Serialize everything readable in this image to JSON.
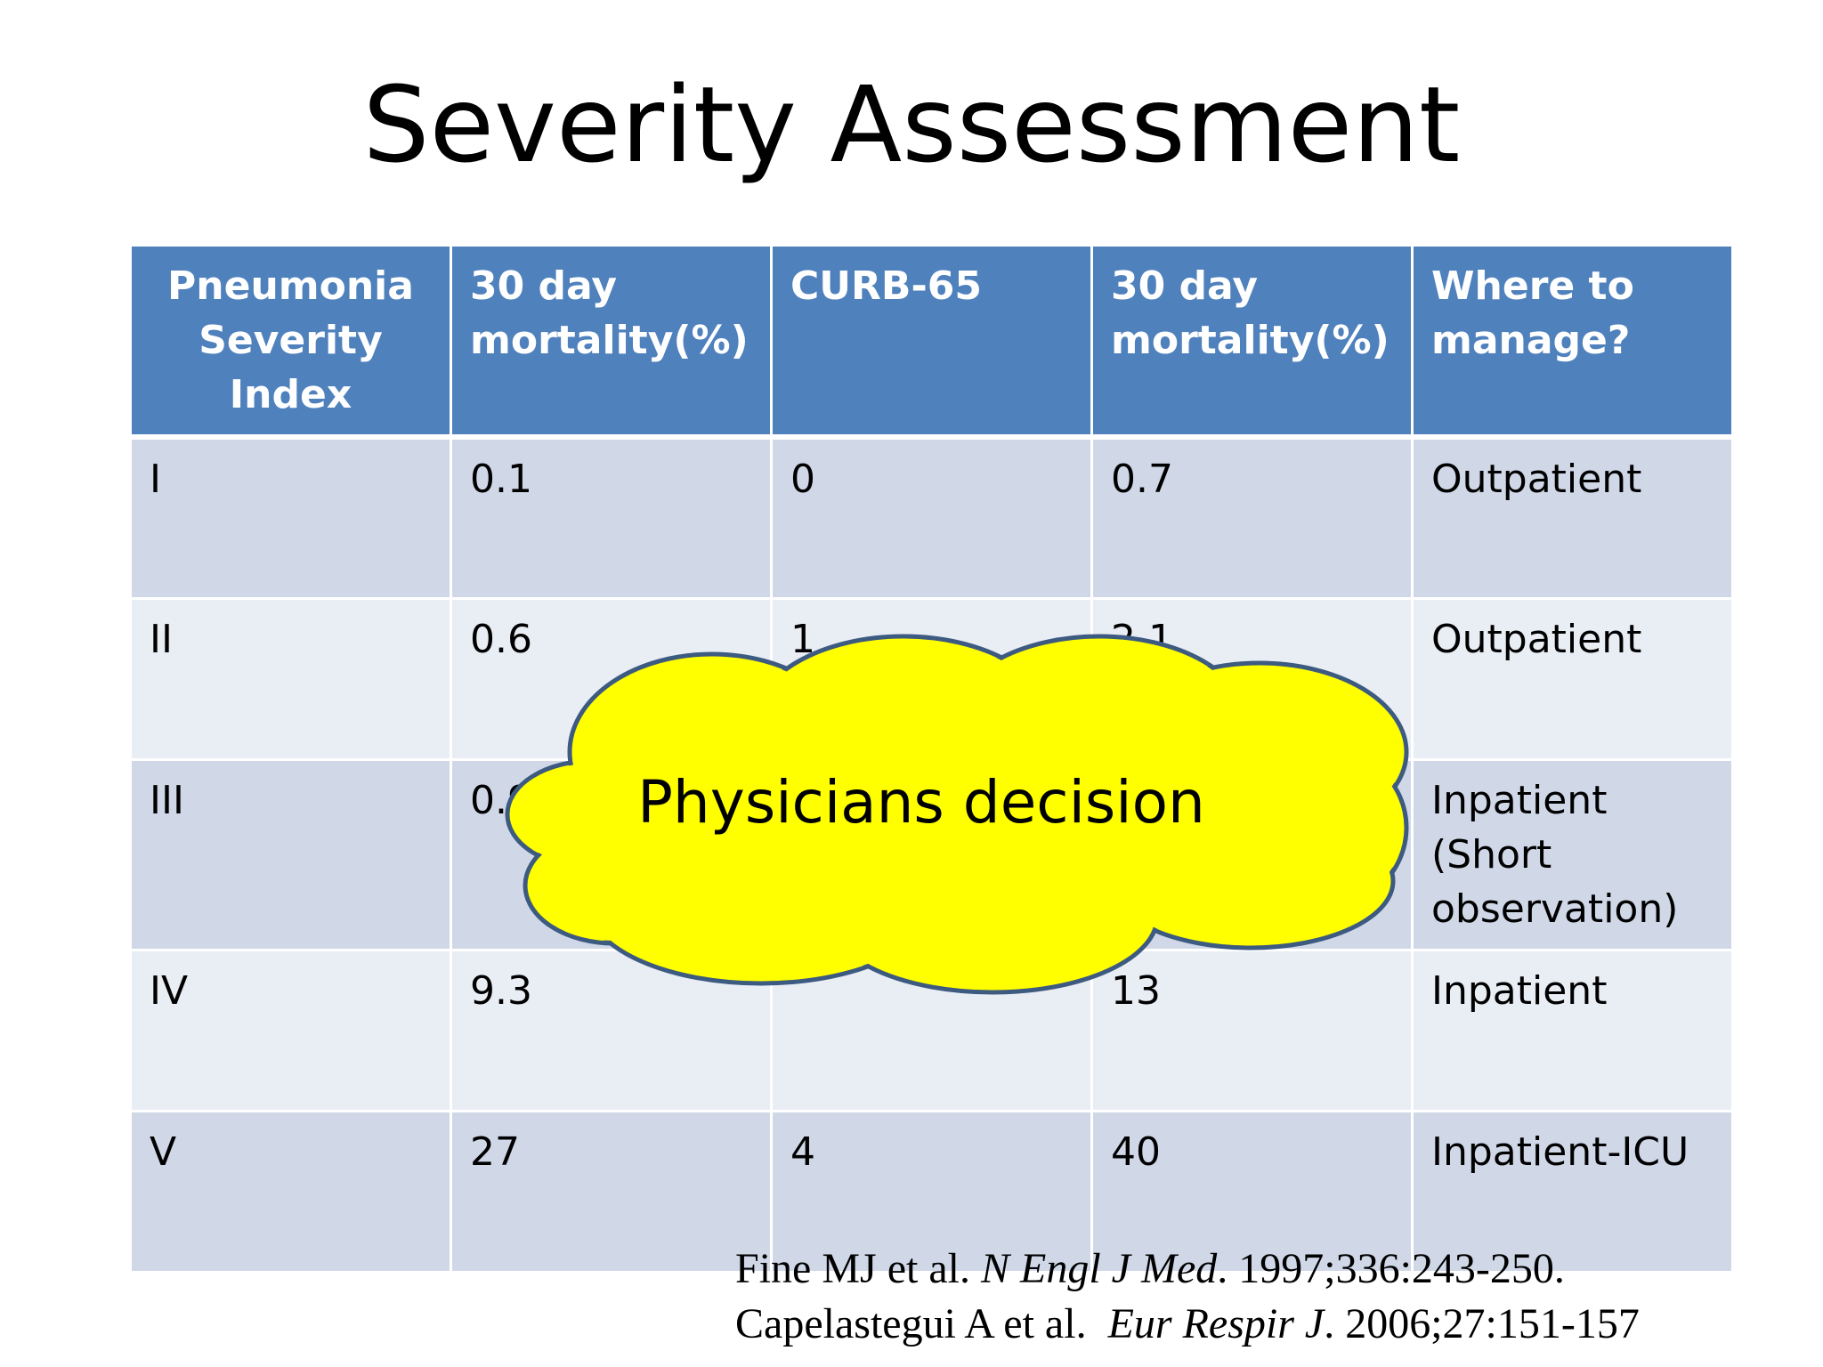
{
  "title": "Severity Assessment",
  "table": {
    "headers": [
      "Pneumonia Severity Index",
      "30 day mortality(%)",
      "CURB-65",
      "30 day mortality(%)",
      "Where to manage?"
    ],
    "rows": [
      [
        "I",
        "0.1",
        "0",
        "0.7",
        "Outpatient"
      ],
      [
        "II",
        "0.6",
        "1",
        "2.1",
        "Outpatient"
      ],
      [
        "III",
        "0.9",
        "",
        "",
        "Inpatient (Short observation)"
      ],
      [
        "IV",
        "9.3",
        "",
        "13",
        "Inpatient"
      ],
      [
        "V",
        "27",
        "4",
        "40",
        "Inpatient-ICU"
      ]
    ]
  },
  "callout": {
    "text": "Physicians decision",
    "fill_color": "#ffff00",
    "stroke_color": "#3d5a80"
  },
  "references": [
    {
      "authors": "Fine MJ et al.",
      "journal": "N Engl J Med",
      "details": "1997;336:243-250."
    },
    {
      "authors": "Capelastegui A et al.",
      "journal": "Eur Respir J",
      "details": "2006;27:151-157"
    }
  ],
  "colors": {
    "header_bg": "#4f81bd",
    "row_odd_bg": "#d0d8e8",
    "row_even_bg": "#e9edf4"
  }
}
